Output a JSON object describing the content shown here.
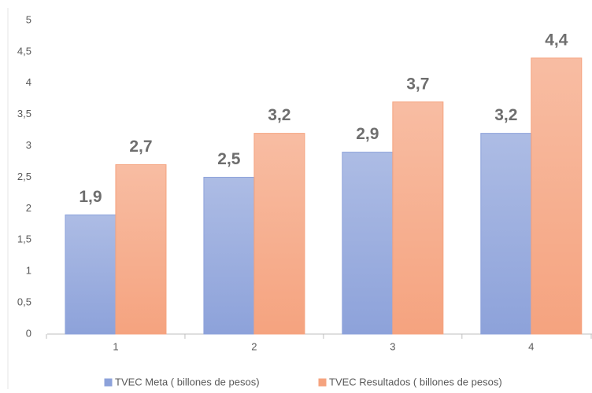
{
  "chart_data": {
    "type": "bar",
    "categories": [
      "1",
      "2",
      "3",
      "4"
    ],
    "series": [
      {
        "name": "TVEC Meta ( billones de pesos)",
        "color": "#8da2da",
        "values": [
          1.9,
          2.5,
          2.9,
          3.2
        ],
        "value_labels": [
          "1,9",
          "2,5",
          "2,9",
          "3,2"
        ]
      },
      {
        "name": "TVEC Resultados ( billones de pesos)",
        "color": "#f5a37f",
        "values": [
          2.7,
          3.2,
          3.7,
          4.4
        ],
        "value_labels": [
          "2,7",
          "3,2",
          "3,7",
          "4,4"
        ]
      }
    ],
    "ylim": [
      0,
      5
    ],
    "yticks": [
      0,
      {
        "value": 0.5,
        "label": "0,5"
      },
      1,
      {
        "value": 1.5,
        "label": "1,5"
      },
      2,
      {
        "value": 2.5,
        "label": "2,5"
      },
      3,
      {
        "value": 3.5,
        "label": "3,5"
      },
      4,
      {
        "value": 4.5,
        "label": "4,5"
      },
      5
    ],
    "legend": "bottom"
  }
}
